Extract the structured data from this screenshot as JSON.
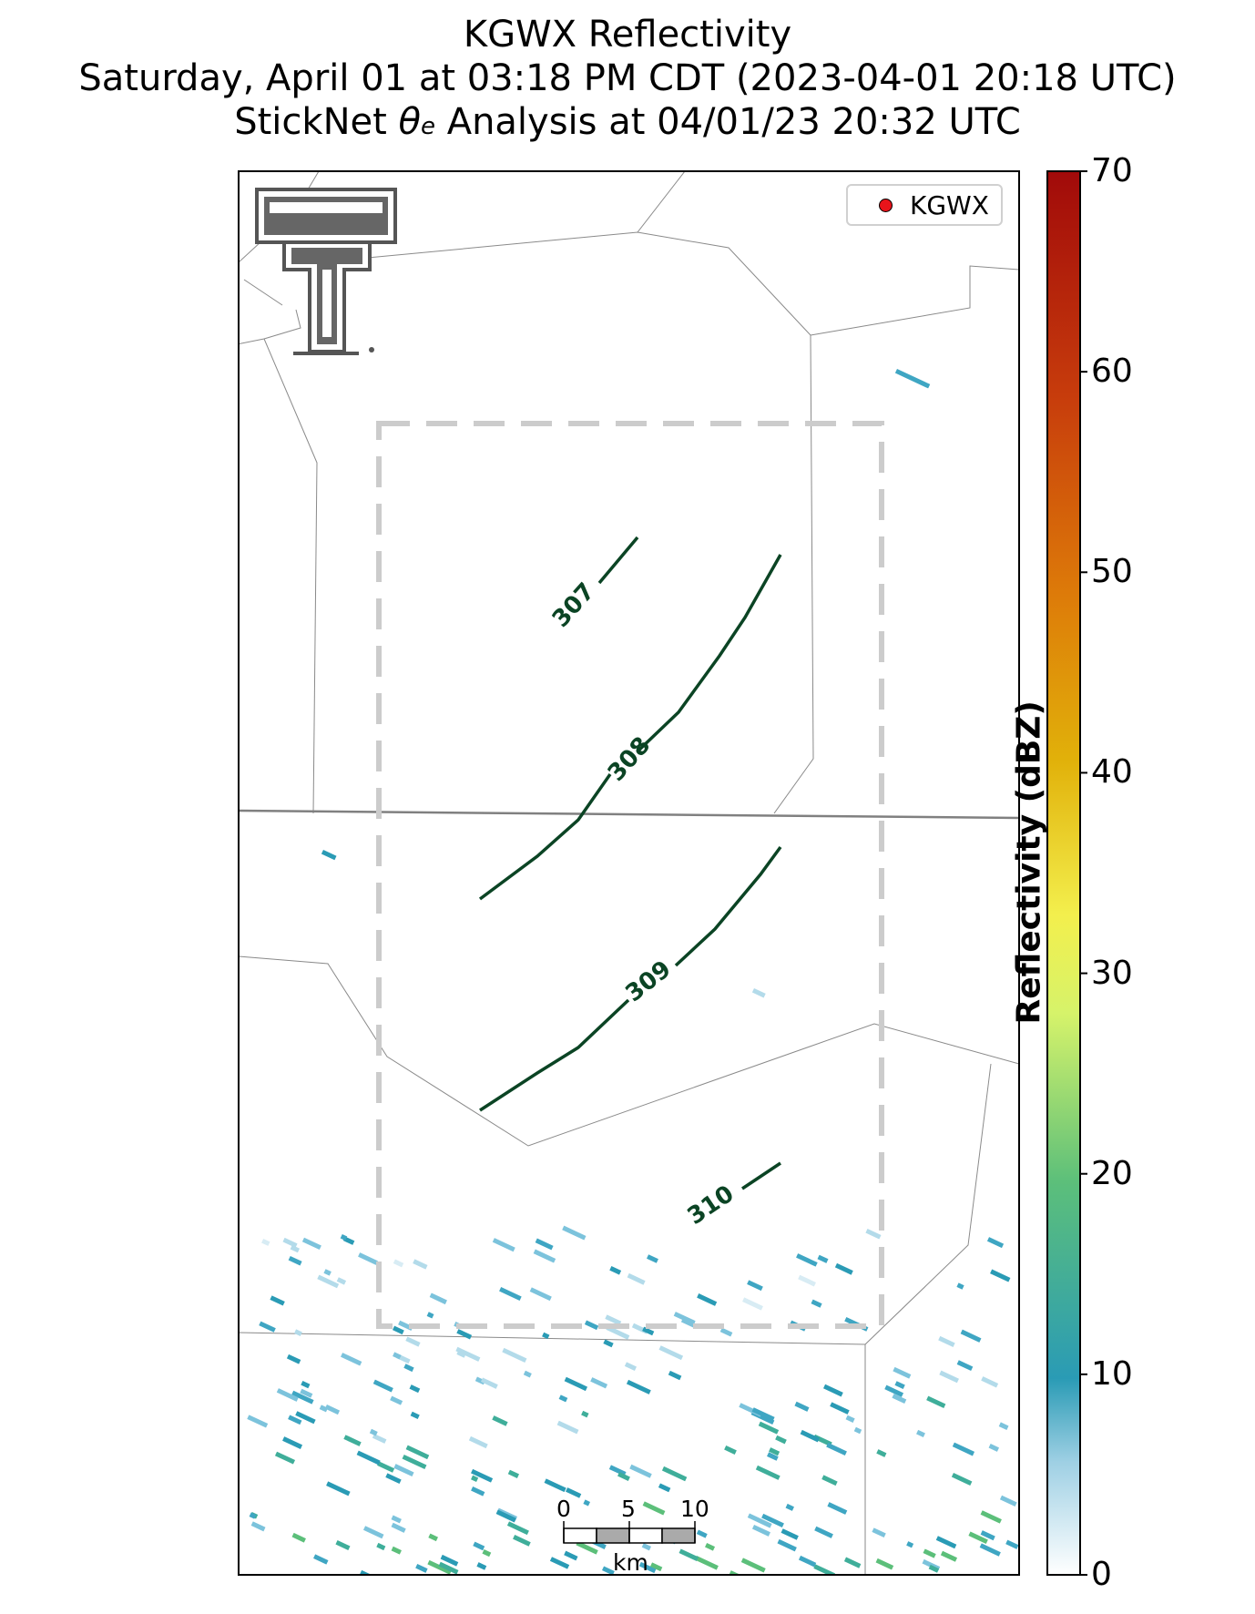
{
  "title": {
    "line1": "KGWX Reflectivity",
    "line2": "Saturday, April 01 at 03:18 PM CDT (2023-04-01 20:18 UTC)",
    "line3_prefix": "StickNet ",
    "line3_symbol": "θ",
    "line3_sub": "e",
    "line3_suffix": " Analysis at 04/01/23 20:32 UTC"
  },
  "legend": {
    "marker_color": "#e8141b",
    "label": "KGWX"
  },
  "colorbar": {
    "label": "Reflectivity (dBZ)",
    "min": 0,
    "max": 70,
    "ticks": [
      "0",
      "10",
      "20",
      "30",
      "40",
      "50",
      "60",
      "70"
    ],
    "colors": [
      "#ffffff",
      "#9fd0e4",
      "#2a9bb5",
      "#5cbf7a",
      "#d6f36a",
      "#f3ef4d",
      "#e1b10a",
      "#dd7a09",
      "#c73c0c",
      "#a10a0a"
    ]
  },
  "contours": {
    "color": "#0b4424",
    "labels": [
      "307",
      "308",
      "309",
      "310"
    ]
  },
  "scalebar": {
    "ticks": [
      "0",
      "5",
      "10"
    ],
    "unit": "km"
  },
  "logo": {
    "name": "Texas Tech Double T",
    "letter": "T"
  },
  "analysis_box": {
    "style": "dashed",
    "color": "#cccccc"
  }
}
